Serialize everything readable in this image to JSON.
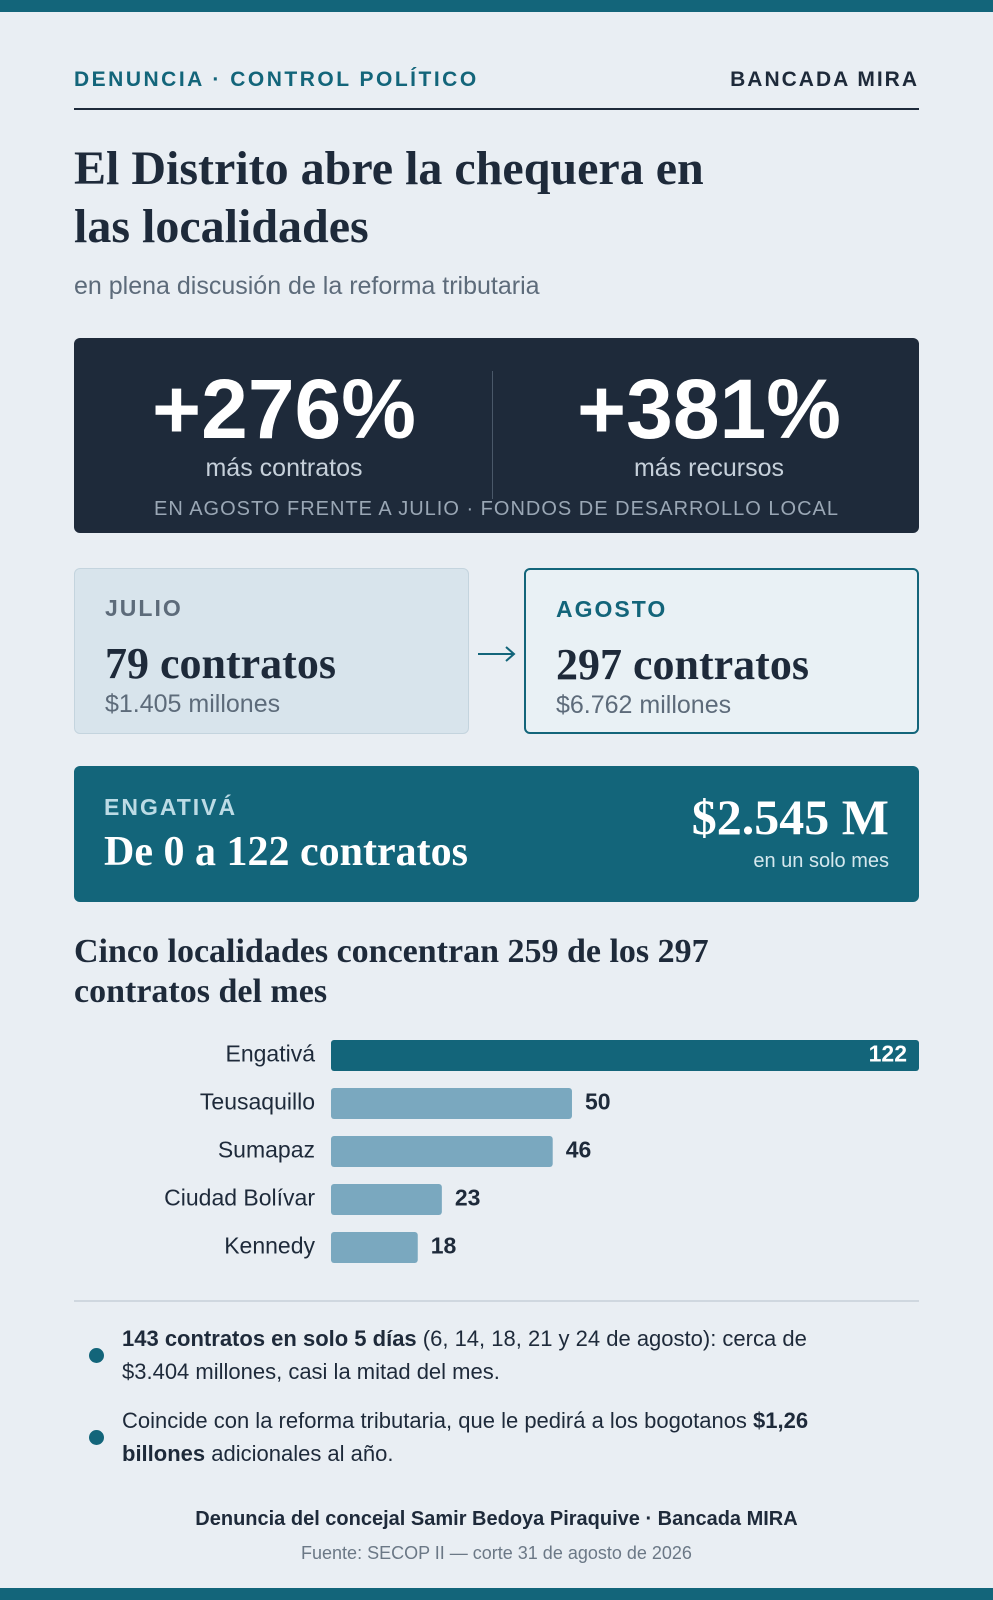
{
  "header": {
    "kicker": "DENUNCIA · CONTROL POLÍTICO",
    "brand": "BANCADA MIRA"
  },
  "title": "El Distrito abre la chequera en las localidades",
  "subtitle": "en plena discusión de la reforma tributaria",
  "stats": [
    {
      "value": "+276%",
      "label": "más contratos"
    },
    {
      "value": "+381%",
      "label": "más recursos"
    }
  ],
  "stats_note": "EN AGOSTO FRENTE A JULIO · FONDOS DE DESARROLLO LOCAL",
  "months": [
    {
      "name": "JULIO",
      "contracts": "79 contratos",
      "amount": "$1.405 millones"
    },
    {
      "name": "AGOSTO",
      "contracts": "297 contratos",
      "amount": "$6.762 millones"
    }
  ],
  "highlight": {
    "label": "ENGATIVÁ",
    "headline": "De 0 a 122 contratos",
    "amount": "$2.545 M",
    "amount_note": "en un solo mes"
  },
  "chart_data": {
    "type": "bar",
    "orientation": "horizontal",
    "title": "Cinco localidades concentran 259 de los 297 contratos del mes",
    "categories": [
      "Engativá",
      "Teusaquillo",
      "Sumapaz",
      "Ciudad Bolívar",
      "Kennedy"
    ],
    "values": [
      122,
      50,
      46,
      23,
      18
    ],
    "colors": [
      "#13657a",
      "#7aa8bf",
      "#7aa8bf",
      "#7aa8bf",
      "#7aa8bf"
    ],
    "xlim": [
      0,
      122
    ]
  },
  "bullets": [
    [
      {
        "text": "143 contratos en solo 5 días",
        "bold": true
      },
      {
        "text": " (6, 14, 18, 21 y 24 de agosto): cerca de $3.404 millones, casi la mitad del mes."
      }
    ],
    [
      {
        "text": "Coincide con la reforma tributaria, que le pedirá a los bogotanos "
      },
      {
        "text": "$1,26 billones",
        "bold": true
      },
      {
        "text": " adicionales al año."
      }
    ]
  ],
  "footer": {
    "credit": "Denuncia del concejal Samir Bedoya Piraquive · Bancada MIRA",
    "source": "Fuente: SECOP II — corte 31 de agosto de 2026"
  }
}
